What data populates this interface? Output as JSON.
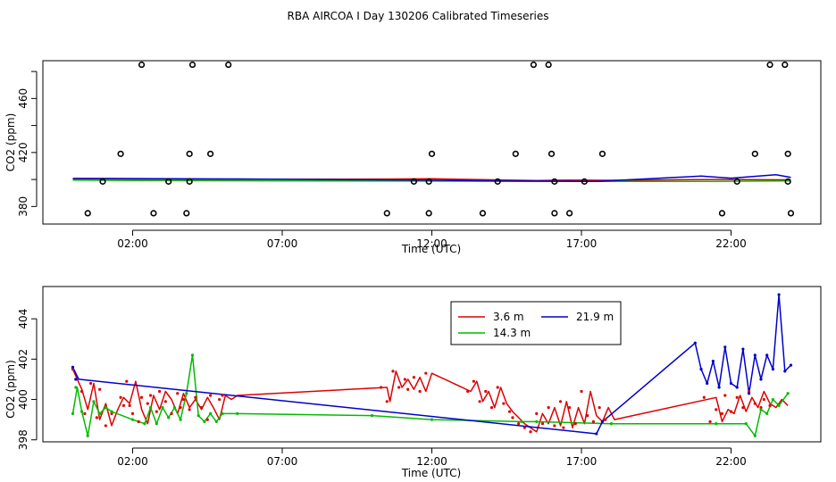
{
  "title": "RBA AIRCOA I  Day 130206  Calibrated Timeseries",
  "colors": {
    "3.6 m": "#dd0000",
    "14.3 m": "#00bb00",
    "21.9 m": "#0000cc",
    "axis": "#000000"
  },
  "chart_data": [
    {
      "type": "scatter",
      "xlabel": "Time (UTC)",
      "ylabel": "CO2 (ppm)",
      "xlim": [
        -1.0,
        25.0
      ],
      "ylim": [
        367,
        488
      ],
      "x_ticks": [
        2,
        7,
        12,
        17,
        22
      ],
      "x_tick_labels": [
        "02:00",
        "07:00",
        "12:00",
        "17:00",
        "22:00"
      ],
      "y_ticks": [
        380,
        420,
        460
      ],
      "y_tick_labels": [
        "380",
        "420",
        "460"
      ],
      "points": [
        {
          "x": 0.5,
          "y": 375
        },
        {
          "x": 1.0,
          "y": 398.5
        },
        {
          "x": 1.6,
          "y": 419
        },
        {
          "x": 2.3,
          "y": 485
        },
        {
          "x": 2.7,
          "y": 375
        },
        {
          "x": 3.2,
          "y": 398.5
        },
        {
          "x": 3.8,
          "y": 375
        },
        {
          "x": 3.9,
          "y": 398.5
        },
        {
          "x": 3.9,
          "y": 419
        },
        {
          "x": 4.0,
          "y": 485
        },
        {
          "x": 4.6,
          "y": 419
        },
        {
          "x": 5.2,
          "y": 485
        },
        {
          "x": 10.5,
          "y": 375
        },
        {
          "x": 11.4,
          "y": 398.5
        },
        {
          "x": 11.9,
          "y": 375
        },
        {
          "x": 11.9,
          "y": 398.5
        },
        {
          "x": 12.0,
          "y": 419
        },
        {
          "x": 13.7,
          "y": 375
        },
        {
          "x": 14.2,
          "y": 398.5
        },
        {
          "x": 14.8,
          "y": 419
        },
        {
          "x": 15.4,
          "y": 485
        },
        {
          "x": 15.9,
          "y": 485
        },
        {
          "x": 16.0,
          "y": 419
        },
        {
          "x": 16.1,
          "y": 398.5
        },
        {
          "x": 16.1,
          "y": 375
        },
        {
          "x": 16.6,
          "y": 375
        },
        {
          "x": 17.1,
          "y": 398.5
        },
        {
          "x": 17.7,
          "y": 419
        },
        {
          "x": 21.7,
          "y": 375
        },
        {
          "x": 22.2,
          "y": 398.5
        },
        {
          "x": 22.8,
          "y": 419
        },
        {
          "x": 23.3,
          "y": 485
        },
        {
          "x": 23.8,
          "y": 485
        },
        {
          "x": 23.9,
          "y": 419
        },
        {
          "x": 23.9,
          "y": 398.5
        },
        {
          "x": 24.0,
          "y": 375
        }
      ],
      "series": [
        {
          "name": "3.6 m",
          "x": [
            0.0,
            5.5,
            10.5,
            12.0,
            15.5,
            16.5,
            18.0,
            21.5,
            24.0
          ],
          "y": [
            400.5,
            400.1,
            400.3,
            400.5,
            399.2,
            399.5,
            399.4,
            400.0,
            399.7
          ]
        },
        {
          "name": "14.3 m",
          "x": [
            0.0,
            2.0,
            5.5,
            12.0,
            15.5,
            18.0,
            21.5,
            24.0
          ],
          "y": [
            399.5,
            399.2,
            399.1,
            398.8,
            398.6,
            398.6,
            398.6,
            399.0
          ]
        },
        {
          "name": "21.9 m",
          "x": [
            0.0,
            5.5,
            11.5,
            15.0,
            17.5,
            21.0,
            22.0,
            23.5,
            24.0
          ],
          "y": [
            400.8,
            400.4,
            399.6,
            398.9,
            398.6,
            402.5,
            401.0,
            403.5,
            401.5
          ]
        }
      ]
    },
    {
      "type": "line",
      "xlabel": "Time (UTC)",
      "ylabel": "CO2 (ppm)",
      "xlim": [
        -1.0,
        25.0
      ],
      "ylim": [
        397.9,
        405.6
      ],
      "x_ticks": [
        2,
        7,
        12,
        17,
        22
      ],
      "x_tick_labels": [
        "02:00",
        "07:00",
        "12:00",
        "17:00",
        "22:00"
      ],
      "y_ticks": [
        398,
        400,
        402,
        404
      ],
      "y_tick_labels": [
        "398",
        "400",
        "402",
        "404"
      ],
      "legend": {
        "position": "top-center",
        "entries": [
          "3.6 m",
          "14.3 m",
          "21.9 m"
        ]
      },
      "series": [
        {
          "name": "3.6 m",
          "x": [
            0.0,
            0.15,
            0.3,
            0.5,
            0.7,
            0.9,
            1.1,
            1.3,
            1.5,
            1.7,
            1.9,
            2.1,
            2.3,
            2.5,
            2.7,
            2.9,
            3.1,
            3.3,
            3.5,
            3.7,
            3.9,
            4.1,
            4.3,
            4.5,
            4.7,
            4.9,
            5.1,
            5.3,
            5.5,
            10.5,
            10.6,
            10.8,
            11.0,
            11.2,
            11.4,
            11.6,
            11.8,
            12.0,
            13.3,
            13.5,
            13.7,
            13.9,
            14.1,
            14.3,
            14.5,
            14.7,
            14.9,
            15.1,
            15.3,
            15.5,
            15.7,
            15.9,
            16.1,
            16.3,
            16.5,
            16.7,
            16.9,
            17.1,
            17.3,
            17.5,
            17.7,
            17.9,
            18.1,
            21.5,
            21.7,
            21.9,
            22.1,
            22.3,
            22.5,
            22.7,
            22.9,
            23.1,
            23.3,
            23.5,
            23.7,
            23.9
          ],
          "y": [
            401.5,
            401.0,
            400.5,
            399.5,
            400.8,
            399.0,
            399.8,
            398.7,
            399.5,
            400.1,
            399.8,
            400.9,
            399.5,
            398.8,
            400.2,
            399.5,
            400.4,
            400.0,
            399.3,
            400.3,
            399.6,
            400.0,
            399.5,
            400.1,
            399.6,
            399.0,
            400.2,
            400.0,
            400.2,
            400.6,
            399.9,
            401.4,
            400.6,
            401.0,
            400.5,
            401.1,
            400.4,
            401.3,
            400.4,
            400.9,
            399.9,
            400.4,
            399.6,
            400.6,
            399.8,
            399.4,
            399.1,
            398.8,
            398.6,
            398.4,
            399.3,
            398.8,
            399.6,
            398.7,
            399.9,
            398.6,
            399.6,
            398.8,
            400.4,
            399.2,
            398.9,
            399.6,
            399.0,
            400.1,
            398.9,
            399.5,
            399.3,
            400.2,
            399.4,
            400.1,
            399.6,
            400.4,
            399.8,
            399.6,
            400.0,
            399.7
          ],
          "points": [
            [
              0.0,
              401.5
            ],
            [
              0.1,
              401.0
            ],
            [
              0.3,
              400.4
            ],
            [
              0.4,
              399.3
            ],
            [
              0.6,
              400.8
            ],
            [
              0.8,
              399.1
            ],
            [
              0.9,
              400.5
            ],
            [
              1.1,
              398.7
            ],
            [
              1.3,
              399.3
            ],
            [
              1.6,
              400.1
            ],
            [
              1.7,
              399.7
            ],
            [
              1.8,
              400.9
            ],
            [
              1.9,
              399.7
            ],
            [
              2.0,
              399.3
            ],
            [
              2.2,
              398.9
            ],
            [
              2.3,
              400.1
            ],
            [
              2.5,
              399.8
            ],
            [
              2.6,
              400.2
            ],
            [
              2.8,
              399.4
            ],
            [
              2.9,
              400.4
            ],
            [
              3.1,
              399.9
            ],
            [
              3.3,
              399.3
            ],
            [
              3.5,
              400.3
            ],
            [
              3.6,
              399.6
            ],
            [
              3.7,
              400.0
            ],
            [
              3.9,
              399.5
            ],
            [
              4.1,
              400.1
            ],
            [
              4.3,
              399.6
            ],
            [
              4.5,
              399.0
            ],
            [
              4.6,
              400.2
            ],
            [
              4.9,
              400.0
            ],
            [
              5.0,
              400.2
            ],
            [
              10.3,
              400.6
            ],
            [
              10.5,
              399.9
            ],
            [
              10.7,
              401.4
            ],
            [
              10.9,
              400.6
            ],
            [
              11.1,
              401.0
            ],
            [
              11.2,
              400.5
            ],
            [
              11.4,
              401.1
            ],
            [
              11.6,
              400.4
            ],
            [
              11.8,
              401.3
            ],
            [
              13.2,
              400.4
            ],
            [
              13.4,
              400.9
            ],
            [
              13.6,
              399.9
            ],
            [
              13.8,
              400.4
            ],
            [
              14.0,
              399.6
            ],
            [
              14.2,
              400.6
            ],
            [
              14.4,
              399.8
            ],
            [
              14.6,
              399.4
            ],
            [
              14.7,
              399.1
            ],
            [
              14.9,
              398.8
            ],
            [
              15.1,
              398.6
            ],
            [
              15.3,
              398.4
            ],
            [
              15.5,
              399.3
            ],
            [
              15.7,
              398.8
            ],
            [
              15.9,
              399.6
            ],
            [
              16.1,
              398.7
            ],
            [
              16.3,
              399.9
            ],
            [
              16.4,
              398.6
            ],
            [
              16.6,
              399.6
            ],
            [
              16.8,
              398.8
            ],
            [
              17.0,
              400.4
            ],
            [
              17.2,
              399.2
            ],
            [
              17.4,
              398.9
            ],
            [
              17.6,
              399.6
            ],
            [
              17.8,
              399.0
            ],
            [
              21.1,
              400.1
            ],
            [
              21.3,
              398.9
            ],
            [
              21.5,
              399.5
            ],
            [
              21.7,
              399.3
            ],
            [
              21.8,
              400.2
            ],
            [
              22.0,
              399.4
            ],
            [
              22.2,
              400.1
            ],
            [
              22.4,
              399.6
            ],
            [
              22.6,
              400.4
            ],
            [
              22.8,
              399.8
            ],
            [
              23.0,
              399.6
            ],
            [
              23.1,
              400.0
            ],
            [
              23.3,
              399.7
            ]
          ]
        },
        {
          "name": "14.3 m",
          "x": [
            0.0,
            0.15,
            0.3,
            0.5,
            0.7,
            0.9,
            1.1,
            1.3,
            2.0,
            2.4,
            2.6,
            2.8,
            3.0,
            3.2,
            3.4,
            3.6,
            3.8,
            4.0,
            4.2,
            4.4,
            4.6,
            4.8,
            5.0,
            5.2,
            5.4,
            5.5,
            10.0,
            12.0,
            15.0,
            15.5,
            18.0,
            21.5,
            22.5,
            22.8,
            23.0,
            23.2,
            23.4,
            23.6,
            23.9
          ],
          "y": [
            399.3,
            400.6,
            399.4,
            398.2,
            399.9,
            399.3,
            399.6,
            399.4,
            399.0,
            398.8,
            399.6,
            398.8,
            399.6,
            399.1,
            399.6,
            399.0,
            400.3,
            402.2,
            399.2,
            398.9,
            399.3,
            398.9,
            399.3,
            399.3,
            399.3,
            399.3,
            399.2,
            399.0,
            398.9,
            398.9,
            398.8,
            398.8,
            398.8,
            398.2,
            399.5,
            399.3,
            400.0,
            399.7,
            400.3
          ],
          "points": [
            [
              0.0,
              399.3
            ],
            [
              0.1,
              400.6
            ],
            [
              0.3,
              399.4
            ],
            [
              0.5,
              398.2
            ],
            [
              0.7,
              399.9
            ],
            [
              0.9,
              399.3
            ],
            [
              1.1,
              399.6
            ],
            [
              1.3,
              399.4
            ],
            [
              2.0,
              399.0
            ],
            [
              2.4,
              398.8
            ],
            [
              2.6,
              399.6
            ],
            [
              2.8,
              398.8
            ],
            [
              3.0,
              399.6
            ],
            [
              3.2,
              399.1
            ],
            [
              3.4,
              399.6
            ],
            [
              3.6,
              399.0
            ],
            [
              3.8,
              400.3
            ],
            [
              4.0,
              402.2
            ],
            [
              4.2,
              399.2
            ],
            [
              4.4,
              398.9
            ],
            [
              4.6,
              399.3
            ],
            [
              4.8,
              398.9
            ],
            [
              5.0,
              399.3
            ],
            [
              5.5,
              399.3
            ],
            [
              10.0,
              399.2
            ],
            [
              12.0,
              399.0
            ],
            [
              15.0,
              398.9
            ],
            [
              15.5,
              398.9
            ],
            [
              18.0,
              398.8
            ],
            [
              21.5,
              398.8
            ],
            [
              22.5,
              398.8
            ],
            [
              22.8,
              398.2
            ],
            [
              23.0,
              399.5
            ],
            [
              23.2,
              399.3
            ],
            [
              23.4,
              400.0
            ],
            [
              23.6,
              399.7
            ],
            [
              23.9,
              400.3
            ]
          ]
        },
        {
          "name": "21.9 m",
          "x": [
            0.0,
            0.2,
            17.5,
            17.7,
            20.8,
            21.0,
            21.2,
            21.4,
            21.6,
            21.8,
            22.0,
            22.2,
            22.4,
            22.6,
            22.8,
            23.0,
            23.2,
            23.4,
            23.6,
            23.8,
            24.0
          ],
          "y": [
            401.6,
            401.0,
            398.3,
            398.9,
            402.8,
            401.5,
            400.8,
            401.9,
            400.6,
            402.6,
            400.8,
            400.6,
            402.5,
            400.3,
            402.2,
            401.0,
            402.2,
            401.5,
            405.2,
            401.4,
            401.7
          ],
          "points": [
            [
              0.0,
              401.6
            ],
            [
              0.1,
              401.0
            ],
            [
              17.5,
              398.3
            ],
            [
              17.7,
              398.9
            ],
            [
              20.8,
              402.8
            ],
            [
              21.0,
              401.5
            ],
            [
              21.2,
              400.8
            ],
            [
              21.4,
              401.9
            ],
            [
              21.6,
              400.6
            ],
            [
              21.8,
              402.6
            ],
            [
              22.0,
              400.8
            ],
            [
              22.2,
              400.6
            ],
            [
              22.4,
              402.5
            ],
            [
              22.6,
              400.3
            ],
            [
              22.8,
              402.2
            ],
            [
              23.0,
              401.0
            ],
            [
              23.2,
              402.2
            ],
            [
              23.4,
              401.5
            ],
            [
              23.6,
              405.2
            ],
            [
              23.8,
              401.4
            ],
            [
              24.0,
              401.7
            ]
          ]
        }
      ]
    }
  ]
}
